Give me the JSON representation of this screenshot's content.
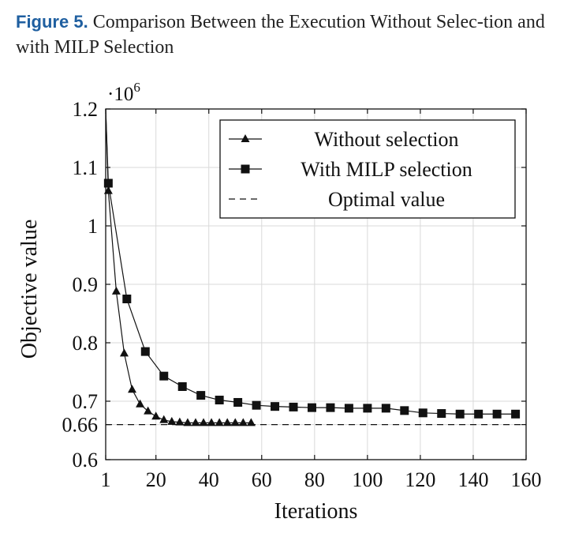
{
  "caption": {
    "label": "Figure 5.",
    "text": "Comparison Between the Execution Without Selec-tion and with MILP Selection"
  },
  "colors": {
    "caption_label": "#1f5fa0",
    "ink": "#111111",
    "grid": "#d9d9d9"
  },
  "chart_data": {
    "type": "line",
    "xlabel": "Iterations",
    "ylabel": "Objective value",
    "y_multiplier": "·10",
    "y_multiplier_exp": "6",
    "xlim": [
      1,
      160
    ],
    "ylim": [
      0.6,
      1.2
    ],
    "x_ticks": [
      1,
      20,
      40,
      60,
      80,
      100,
      120,
      140,
      160
    ],
    "x_tick_labels": [
      "1",
      "20",
      "40",
      "60",
      "80",
      "100",
      "120",
      "140",
      "160"
    ],
    "y_ticks": [
      0.6,
      0.66,
      0.7,
      0.8,
      0.9,
      1.0,
      1.1,
      1.2
    ],
    "y_tick_labels": [
      "0.6",
      "0.66",
      "0.7",
      "0.8",
      "0.9",
      "1",
      "1.1",
      "1.2"
    ],
    "grid": true,
    "legend_position": "top-right",
    "series": [
      {
        "name": "Without selection",
        "marker": "triangle",
        "x": [
          1,
          2,
          5,
          8,
          11,
          14,
          17,
          20,
          23,
          26,
          29,
          32,
          35,
          38,
          41,
          44,
          47,
          50,
          53,
          56
        ],
        "y": [
          1.2,
          1.06,
          0.888,
          0.782,
          0.72,
          0.695,
          0.683,
          0.674,
          0.668,
          0.665,
          0.664,
          0.663,
          0.663,
          0.663,
          0.663,
          0.663,
          0.663,
          0.663,
          0.663,
          0.663
        ]
      },
      {
        "name": "With MILP selection",
        "marker": "square",
        "x": [
          1,
          2,
          9,
          16,
          23,
          30,
          37,
          44,
          51,
          58,
          65,
          72,
          79,
          86,
          93,
          100,
          107,
          114,
          121,
          128,
          135,
          142,
          149,
          156
        ],
        "y": [
          1.2,
          1.073,
          0.875,
          0.785,
          0.743,
          0.725,
          0.71,
          0.702,
          0.698,
          0.693,
          0.691,
          0.69,
          0.689,
          0.689,
          0.688,
          0.688,
          0.688,
          0.684,
          0.68,
          0.679,
          0.678,
          0.678,
          0.678,
          0.678
        ]
      },
      {
        "name": "Optimal value",
        "marker": "none",
        "dashed": true,
        "x": [
          1,
          160
        ],
        "y": [
          0.66,
          0.66
        ]
      }
    ]
  }
}
